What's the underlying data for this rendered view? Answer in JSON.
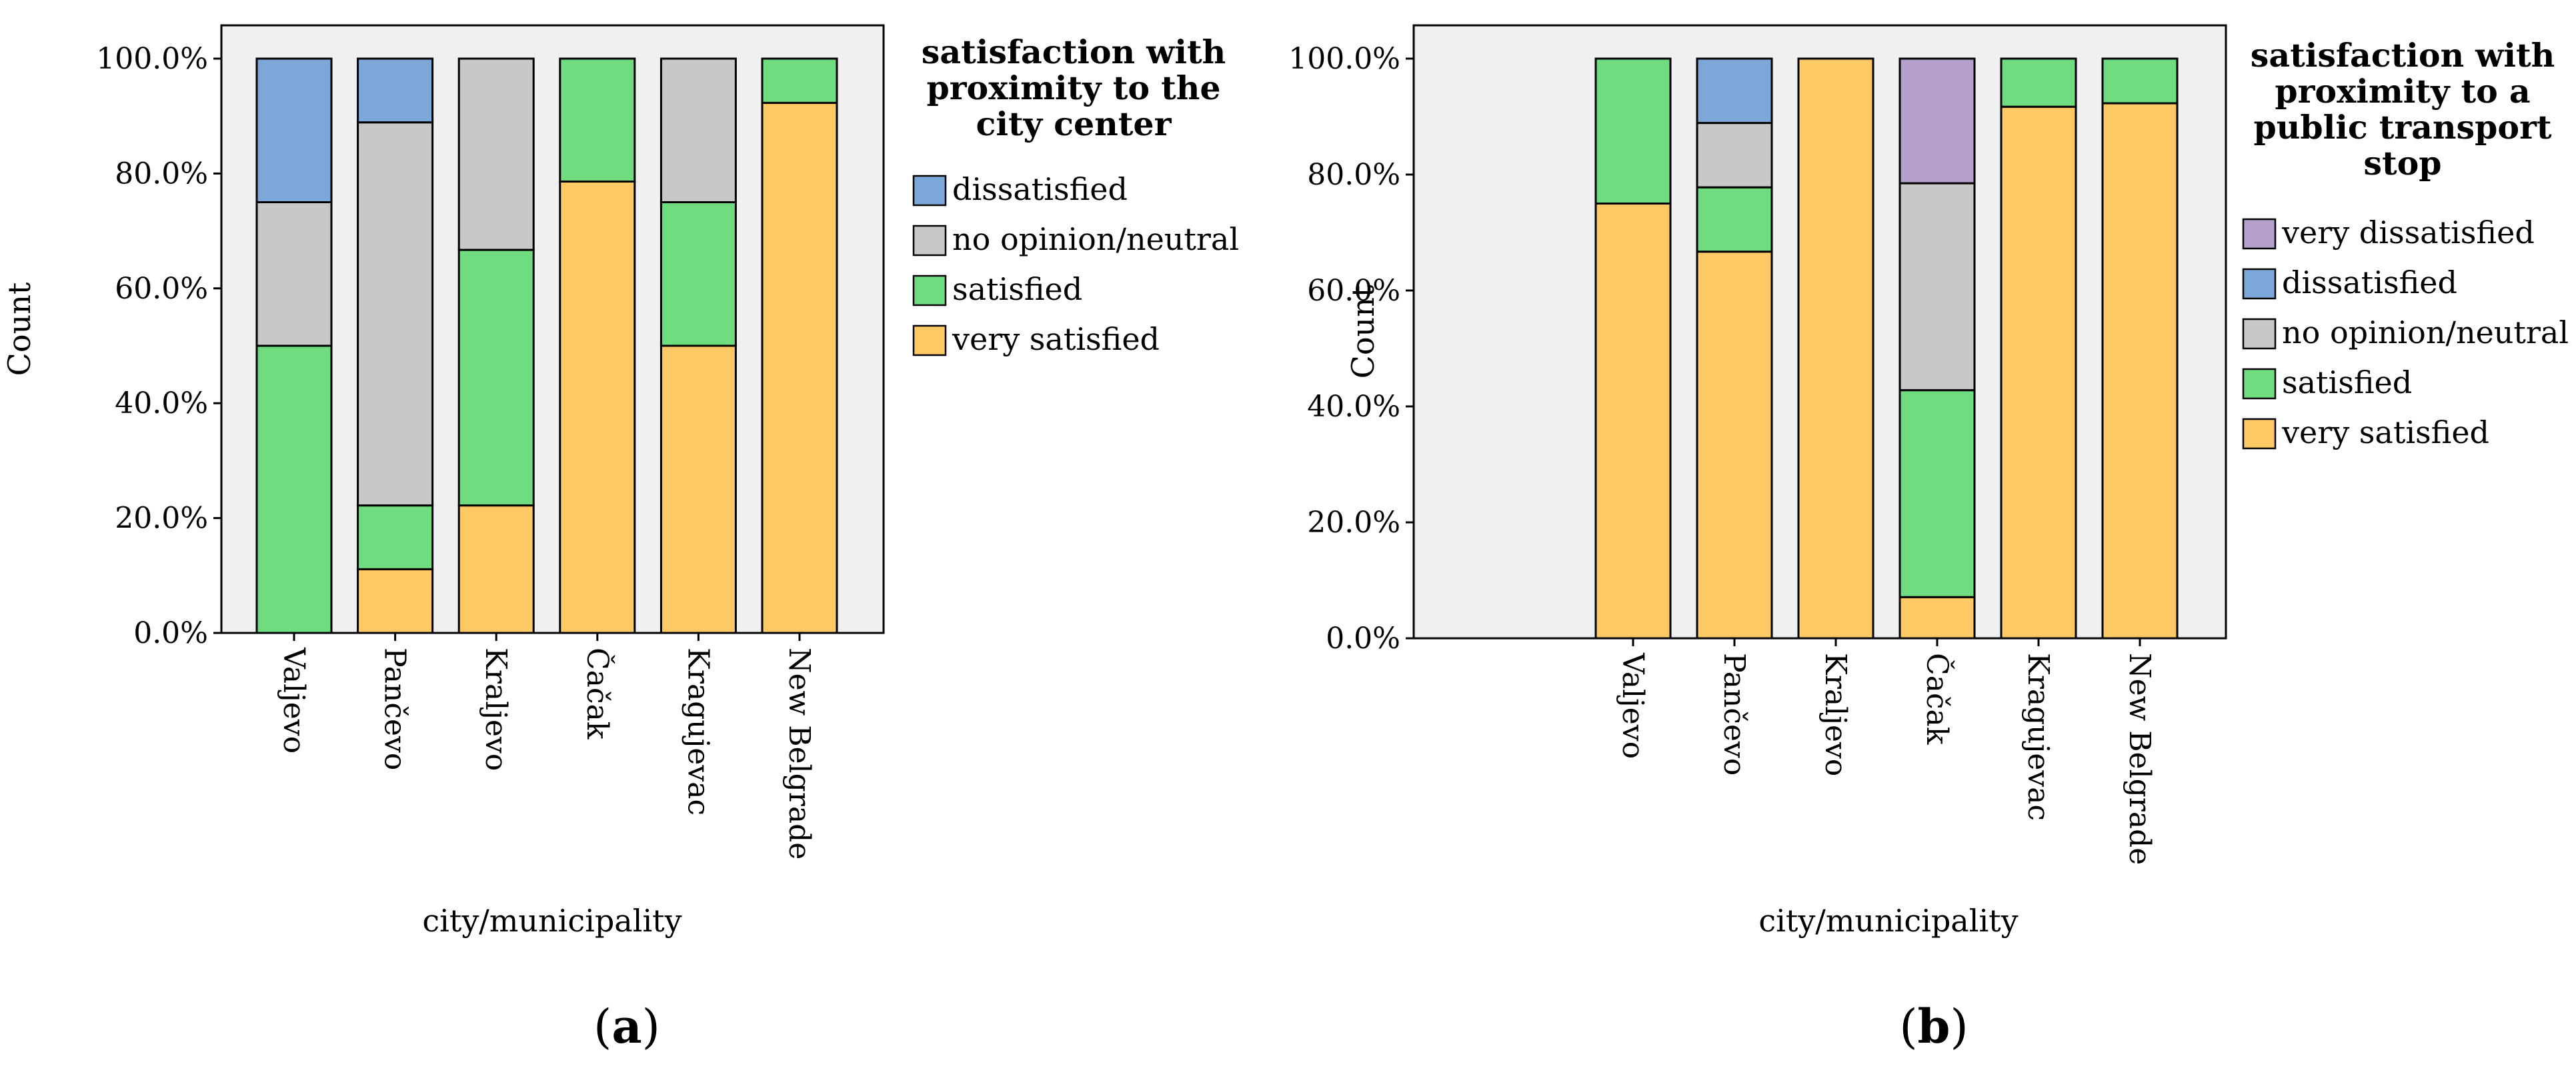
{
  "chart_data": [
    {
      "type": "bar",
      "stacked": true,
      "panel_label": "a",
      "ylabel": "Count",
      "xlabel": "city/municipality",
      "ylim": [
        0,
        100
      ],
      "yticks": [
        "0.0%",
        "20.0%",
        "40.0%",
        "60.0%",
        "80.0%",
        "100.0%"
      ],
      "categories": [
        "Valjevo",
        "Pančevo",
        "Kraljevo",
        "Čačak",
        "Kragujevac",
        "New Belgrade"
      ],
      "legend_title": "satisfaction with proximity to the city center",
      "legend_title_lines": [
        "satisfaction with",
        "proximity to the",
        "city center"
      ],
      "legend_position": "right",
      "series": [
        {
          "name": "very satisfied",
          "color": "#FFCA66",
          "values": [
            0,
            11.1,
            22.2,
            78.6,
            50,
            92.3
          ]
        },
        {
          "name": "satisfied",
          "color": "#6EDC7F",
          "values": [
            50,
            11.1,
            44.5,
            21.4,
            25,
            7.7
          ]
        },
        {
          "name": "no opinion/neutral",
          "color": "#C8C8C8",
          "values": [
            25,
            66.7,
            33.3,
            0,
            25,
            0
          ]
        },
        {
          "name": "dissatisfied",
          "color": "#7BA8D8",
          "values": [
            25,
            11.1,
            0,
            0,
            0,
            0
          ]
        }
      ]
    },
    {
      "type": "bar",
      "stacked": true,
      "panel_label": "b",
      "ylabel": "Count",
      "xlabel": "city/municipality",
      "ylim": [
        0,
        100
      ],
      "yticks": [
        "0.0%",
        "20.0%",
        "40.0%",
        "60.0%",
        "80.0%",
        "100.0%"
      ],
      "categories": [
        "Valjevo",
        "Pančevo",
        "Kraljevo",
        "Čačak",
        "Kragujevac",
        "New Belgrade"
      ],
      "legend_title": "satisfaction with proximity to a public transport stop",
      "legend_title_lines": [
        "satisfaction with",
        "proximity to a",
        "public transport",
        "stop"
      ],
      "legend_position": "right",
      "series": [
        {
          "name": "very satisfied",
          "color": "#FFCA66",
          "values": [
            75,
            66.7,
            100,
            7.1,
            91.7,
            92.3
          ]
        },
        {
          "name": "satisfied",
          "color": "#6EDC7F",
          "values": [
            25,
            11.1,
            0,
            35.7,
            8.3,
            7.7
          ]
        },
        {
          "name": "no opinion/neutral",
          "color": "#C8C8C8",
          "values": [
            0,
            11.1,
            0,
            35.7,
            0,
            0
          ]
        },
        {
          "name": "dissatisfied",
          "color": "#7BA8D8",
          "values": [
            0,
            11.1,
            0,
            0,
            0,
            0
          ]
        },
        {
          "name": "very dissatisfied",
          "color": "#B59FCB",
          "values": [
            0,
            0,
            0,
            21.5,
            0,
            0
          ]
        }
      ]
    }
  ]
}
